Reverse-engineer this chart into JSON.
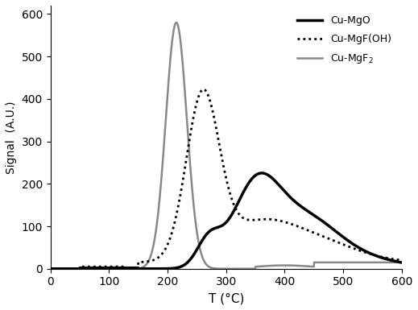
{
  "title": "",
  "xlabel": "T (°C)",
  "ylabel": "Signal  (A.U.)",
  "xlim": [
    0,
    600
  ],
  "ylim": [
    0,
    620
  ],
  "legend": [
    {
      "label": "Cu-MgO",
      "color": "#000000",
      "linestyle": "solid",
      "linewidth": 2.5
    },
    {
      "label": "Cu-MgF(OH)",
      "color": "#000000",
      "linestyle": "dotted",
      "linewidth": 2.0
    },
    {
      "label": "Cu-MgF$_2$",
      "color": "#888888",
      "linestyle": "solid",
      "linewidth": 1.8
    }
  ],
  "background_color": "#ffffff",
  "xticks": [
    0,
    100,
    200,
    300,
    400,
    500,
    600
  ],
  "yticks": [
    0,
    100,
    200,
    300,
    400,
    500,
    600
  ]
}
